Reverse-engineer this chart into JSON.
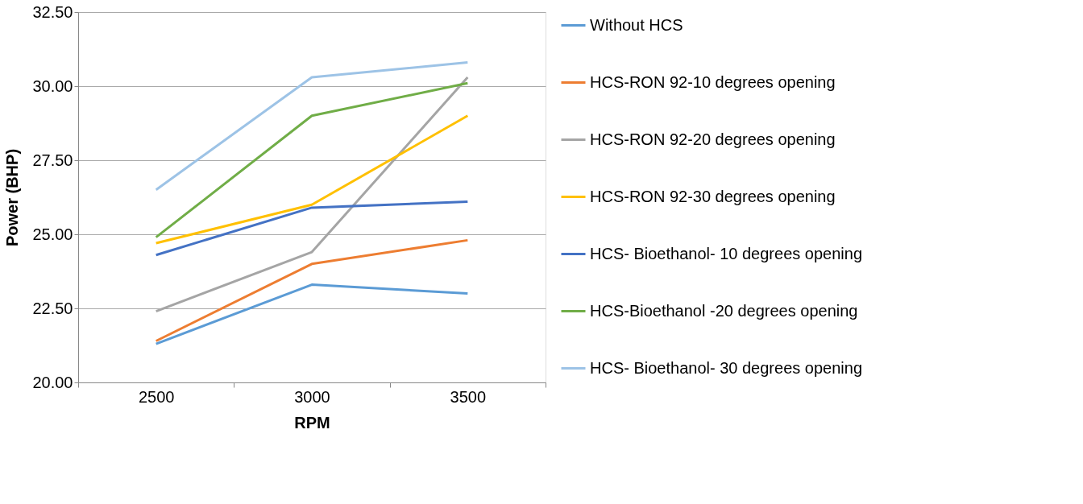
{
  "chart_data": {
    "type": "line",
    "xlabel": "RPM",
    "ylabel": "Power (BHP)",
    "categories": [
      "2500",
      "3000",
      "3500"
    ],
    "series": [
      {
        "name": "Without HCS",
        "color": "#5b9bd5",
        "values": [
          21.3,
          23.3,
          23.0
        ]
      },
      {
        "name": "HCS-RON 92-10 degrees opening",
        "color": "#ed7d31",
        "values": [
          21.4,
          24.0,
          24.8
        ]
      },
      {
        "name": "HCS-RON 92-20 degrees opening",
        "color": "#a5a5a5",
        "values": [
          22.4,
          24.4,
          30.3
        ]
      },
      {
        "name": "HCS-RON 92-30 degrees opening",
        "color": "#ffc000",
        "values": [
          24.7,
          26.0,
          29.0
        ]
      },
      {
        "name": "HCS- Bioethanol- 10 degrees opening",
        "color": "#4472c4",
        "values": [
          24.3,
          25.9,
          26.1
        ]
      },
      {
        "name": "HCS-Bioethanol -20 degrees opening",
        "color": "#70ad47",
        "values": [
          24.9,
          29.0,
          30.1
        ]
      },
      {
        "name": "HCS- Bioethanol-  30 degrees opening",
        "color": "#9dc3e6",
        "values": [
          26.5,
          30.3,
          30.8
        ]
      }
    ],
    "ylim": [
      20.0,
      32.5
    ],
    "yticks": [
      {
        "value": 20,
        "label": "20.00"
      },
      {
        "value": 22.5,
        "label": "22.50"
      },
      {
        "value": 25,
        "label": "25.00"
      },
      {
        "value": 27.5,
        "label": "27.50"
      },
      {
        "value": 30,
        "label": "30.00"
      },
      {
        "value": 32.5,
        "label": "32.50"
      }
    ],
    "grid": "y",
    "legend": "right",
    "marker": "none",
    "line_style": "solid"
  }
}
